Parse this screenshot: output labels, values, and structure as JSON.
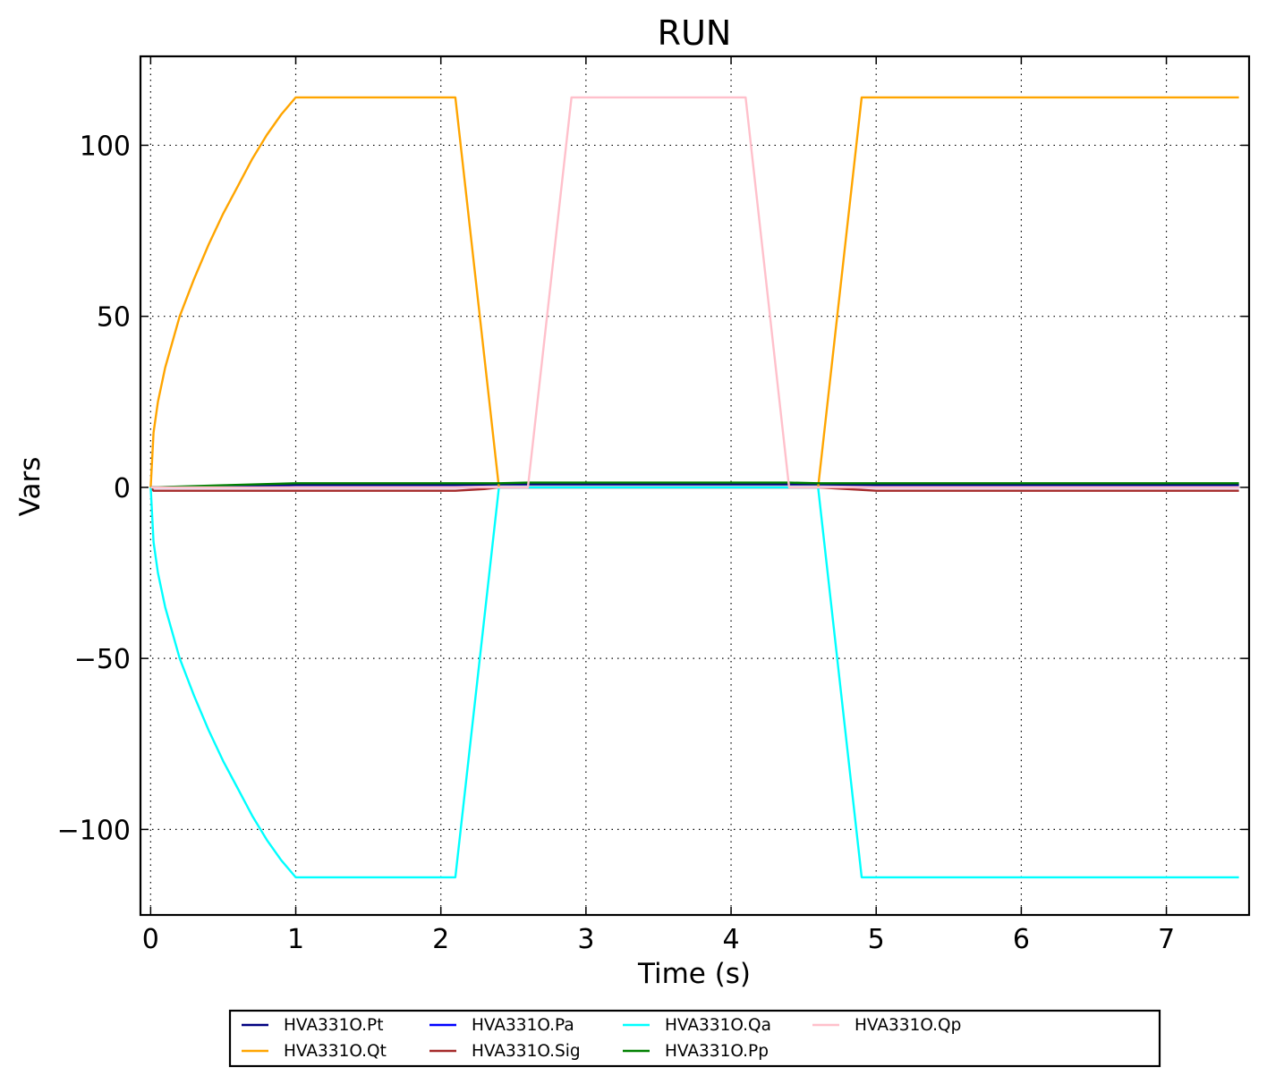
{
  "chart_data": {
    "type": "line",
    "title": "RUN",
    "xlabel": "Time (s)",
    "ylabel": "Vars",
    "xlim": [
      -0.07,
      7.57
    ],
    "ylim": [
      -125,
      126
    ],
    "xticks": [
      0,
      1,
      2,
      3,
      4,
      5,
      6,
      7
    ],
    "xtick_labels": [
      "0",
      "1",
      "2",
      "3",
      "4",
      "5",
      "6",
      "7"
    ],
    "yticks": [
      -100,
      -50,
      0,
      50,
      100
    ],
    "ytick_labels": [
      "−100",
      "−50",
      "0",
      "50",
      "100"
    ],
    "grid": true,
    "legend_position": "below plot",
    "series": [
      {
        "name": "HVA331O.Pt",
        "color": "#000080",
        "x": [
          0,
          0.5,
          1,
          2,
          2.1,
          2.4,
          2.6,
          4.4,
          4.6,
          5,
          7.5
        ],
        "y": [
          0,
          0.4,
          0.7,
          0.7,
          0.7,
          0.9,
          0.9,
          0.9,
          0.9,
          0.7,
          0.7
        ]
      },
      {
        "name": "HVA331O.Qt",
        "color": "#FFA500",
        "x": [
          0,
          0.02,
          0.05,
          0.1,
          0.2,
          0.3,
          0.4,
          0.5,
          0.6,
          0.7,
          0.8,
          0.9,
          1,
          2.1,
          2.4,
          2.6,
          4.4,
          4.6,
          4.9,
          7.5
        ],
        "y": [
          0,
          16,
          25,
          35,
          50,
          61,
          71,
          80,
          88,
          96,
          103,
          109,
          114,
          114,
          0,
          0,
          0,
          0,
          114,
          114
        ]
      },
      {
        "name": "HVA331O.Pa",
        "color": "#0000FF",
        "x": [
          0,
          7.5
        ],
        "y": [
          0,
          0
        ]
      },
      {
        "name": "HVA331O.Sig",
        "color": "#A52A2A",
        "x": [
          0,
          0.02,
          2,
          2.1,
          2.3,
          2.4,
          4.4,
          4.6,
          4.8,
          5,
          7.5
        ],
        "y": [
          0,
          -1,
          -1,
          -1,
          -0.5,
          0,
          0,
          0,
          -0.5,
          -1,
          -1
        ]
      },
      {
        "name": "HVA331O.Qa",
        "color": "#00FFFF",
        "x": [
          0,
          0.02,
          0.05,
          0.1,
          0.2,
          0.3,
          0.4,
          0.5,
          0.6,
          0.7,
          0.8,
          0.9,
          1,
          2.1,
          2.4,
          2.6,
          4.4,
          4.6,
          4.9,
          7.5
        ],
        "y": [
          0,
          -16,
          -25,
          -35,
          -50,
          -61,
          -71,
          -80,
          -88,
          -96,
          -103,
          -109,
          -114,
          -114,
          0,
          0,
          0,
          0,
          -114,
          -114
        ]
      },
      {
        "name": "HVA331O.Pp",
        "color": "#008000",
        "x": [
          0,
          0.5,
          1,
          2.4,
          2.6,
          4.4,
          4.6,
          7.5
        ],
        "y": [
          0,
          0.6,
          1.2,
          1.2,
          1.4,
          1.4,
          1.2,
          1.2
        ]
      },
      {
        "name": "HVA331O.Qp",
        "color": "#FFC0CB",
        "x": [
          0,
          2.6,
          2.9,
          4.1,
          4.4,
          7.5
        ],
        "y": [
          0,
          0,
          114,
          114,
          0,
          0
        ]
      }
    ]
  }
}
